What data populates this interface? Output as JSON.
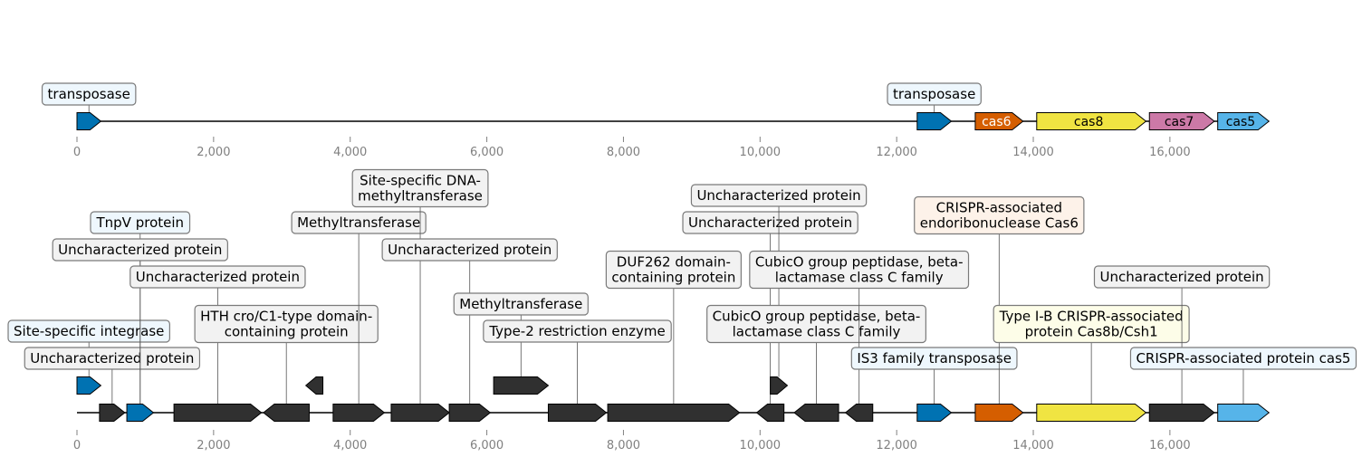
{
  "colors": {
    "transposase": "#0072b2",
    "cas6": "#d55e00",
    "cas8": "#f0e442",
    "cas7": "#cc79a7",
    "cas5": "#56b4e9",
    "other": "#303030",
    "axis_tick_text": "#808080",
    "label_fill_blue": "#eef7fd",
    "label_fill_grey": "#f2f2f2",
    "label_fill_orange": "#fdf2e9",
    "label_fill_yellow": "#fdfde8"
  },
  "axis": {
    "min": 0,
    "max": 17500,
    "ticks": [
      {
        "value": 0,
        "label": "0"
      },
      {
        "value": 2000,
        "label": "2,000"
      },
      {
        "value": 4000,
        "label": "4,000"
      },
      {
        "value": 6000,
        "label": "6,000"
      },
      {
        "value": 8000,
        "label": "8,000"
      },
      {
        "value": 10000,
        "label": "10,000"
      },
      {
        "value": 12000,
        "label": "12,000"
      },
      {
        "value": 14000,
        "label": "14,000"
      },
      {
        "value": 16000,
        "label": "16,000"
      }
    ]
  },
  "tracks": [
    {
      "id": "top",
      "genes": [
        {
          "start": 0,
          "end": 350,
          "strand": 1,
          "color": "transposase",
          "label": "transposase",
          "fill": "label_fill_blue",
          "level": 0
        },
        {
          "start": 12300,
          "end": 12800,
          "strand": 1,
          "color": "transposase",
          "label": "transposase",
          "fill": "label_fill_blue",
          "level": 0
        },
        {
          "start": 13150,
          "end": 13850,
          "strand": 1,
          "color": "cas6",
          "name": "cas6",
          "name_color": "#ffffff"
        },
        {
          "start": 14050,
          "end": 15650,
          "strand": 1,
          "color": "cas8",
          "name": "cas8",
          "name_color": "#000000"
        },
        {
          "start": 15700,
          "end": 16650,
          "strand": 1,
          "color": "cas7",
          "name": "cas7",
          "name_color": "#000000"
        },
        {
          "start": 16700,
          "end": 17450,
          "strand": 1,
          "color": "cas5",
          "name": "cas5",
          "name_color": "#000000"
        }
      ]
    },
    {
      "id": "bottom",
      "genes": [
        {
          "start": 0,
          "end": 350,
          "strand": 1,
          "color": "transposase",
          "raised": true,
          "label": "Site-specific integrase",
          "fill": "label_fill_blue",
          "level": 2
        },
        {
          "start": 330,
          "end": 700,
          "strand": 1,
          "color": "other",
          "label": "Uncharacterized protein",
          "fill": "label_fill_grey",
          "level": 1
        },
        {
          "start": 730,
          "end": 1120,
          "strand": 1,
          "color": "transposase",
          "label": "TnpV protein",
          "fill": "label_fill_blue",
          "level": 6
        },
        {
          "start": 730,
          "end": 1120,
          "strand": 1,
          "color": "transposase",
          "hidden": true,
          "label": "Uncharacterized protein",
          "fill": "label_fill_grey",
          "level": 5
        },
        {
          "start": 1420,
          "end": 2700,
          "strand": 1,
          "color": "other",
          "label": "Uncharacterized protein",
          "fill": "label_fill_grey",
          "level": 4
        },
        {
          "start": 2730,
          "end": 3400,
          "strand": -1,
          "color": "other",
          "label": "HTH cro/C1-type domain-\ncontaining protein",
          "fill": "label_fill_grey",
          "level": 2
        },
        {
          "start": 3350,
          "end": 3600,
          "strand": -1,
          "color": "other",
          "raised": true
        },
        {
          "start": 3750,
          "end": 4500,
          "strand": 1,
          "color": "other",
          "label": "Methyltransferase",
          "fill": "label_fill_grey",
          "level": 6
        },
        {
          "start": 4600,
          "end": 5450,
          "strand": 1,
          "color": "other",
          "label": "Site-specific DNA-\nmethyltransferase",
          "fill": "label_fill_grey",
          "level": 7
        },
        {
          "start": 5450,
          "end": 6050,
          "strand": 1,
          "color": "other",
          "label": "Uncharacterized protein",
          "fill": "label_fill_grey",
          "level": 5
        },
        {
          "start": 6100,
          "end": 6900,
          "strand": 1,
          "color": "other",
          "raised": true,
          "label": "Methyltransferase",
          "fill": "label_fill_grey",
          "level": 3
        },
        {
          "start": 6900,
          "end": 7750,
          "strand": 1,
          "color": "other",
          "label": "Type-2 restriction enzyme",
          "fill": "label_fill_grey",
          "level": 2
        },
        {
          "start": 7770,
          "end": 9700,
          "strand": 1,
          "color": "other",
          "label": "DUF262 domain-\ncontaining protein",
          "fill": "label_fill_grey",
          "level": 4
        },
        {
          "start": 9950,
          "end": 10350,
          "strand": -1,
          "color": "other",
          "label": "Uncharacterized protein",
          "fill": "label_fill_grey",
          "level": 6
        },
        {
          "start": 10150,
          "end": 10400,
          "strand": 1,
          "color": "other",
          "raised": true,
          "label": "Uncharacterized protein",
          "fill": "label_fill_grey",
          "level": 7
        },
        {
          "start": 10500,
          "end": 11150,
          "strand": -1,
          "color": "other",
          "label": "CubicO group peptidase, beta-\nlactamase class C family",
          "fill": "label_fill_grey",
          "level": 2
        },
        {
          "start": 11250,
          "end": 11650,
          "strand": -1,
          "color": "other",
          "label": "CubicO group peptidase, beta-\nlactamase class C family",
          "fill": "label_fill_grey",
          "level": 4
        },
        {
          "start": 12300,
          "end": 12800,
          "strand": 1,
          "color": "transposase",
          "label": "IS3 family transposase",
          "fill": "label_fill_blue",
          "level": 1
        },
        {
          "start": 13150,
          "end": 13850,
          "strand": 1,
          "color": "cas6",
          "label": "CRISPR-associated\nendoribonuclease Cas6",
          "fill": "label_fill_orange",
          "level": 6
        },
        {
          "start": 14050,
          "end": 15650,
          "strand": 1,
          "color": "cas8",
          "label": "Type I-B CRISPR-associated\nprotein Cas8b/Csh1",
          "fill": "label_fill_yellow",
          "level": 2
        },
        {
          "start": 15700,
          "end": 16650,
          "strand": 1,
          "color": "other",
          "label": "Uncharacterized protein",
          "fill": "label_fill_grey",
          "level": 4
        },
        {
          "start": 16700,
          "end": 17450,
          "strand": 1,
          "color": "cas5",
          "label": "CRISPR-associated protein cas5",
          "fill": "label_fill_blue",
          "level": 1
        }
      ]
    }
  ]
}
